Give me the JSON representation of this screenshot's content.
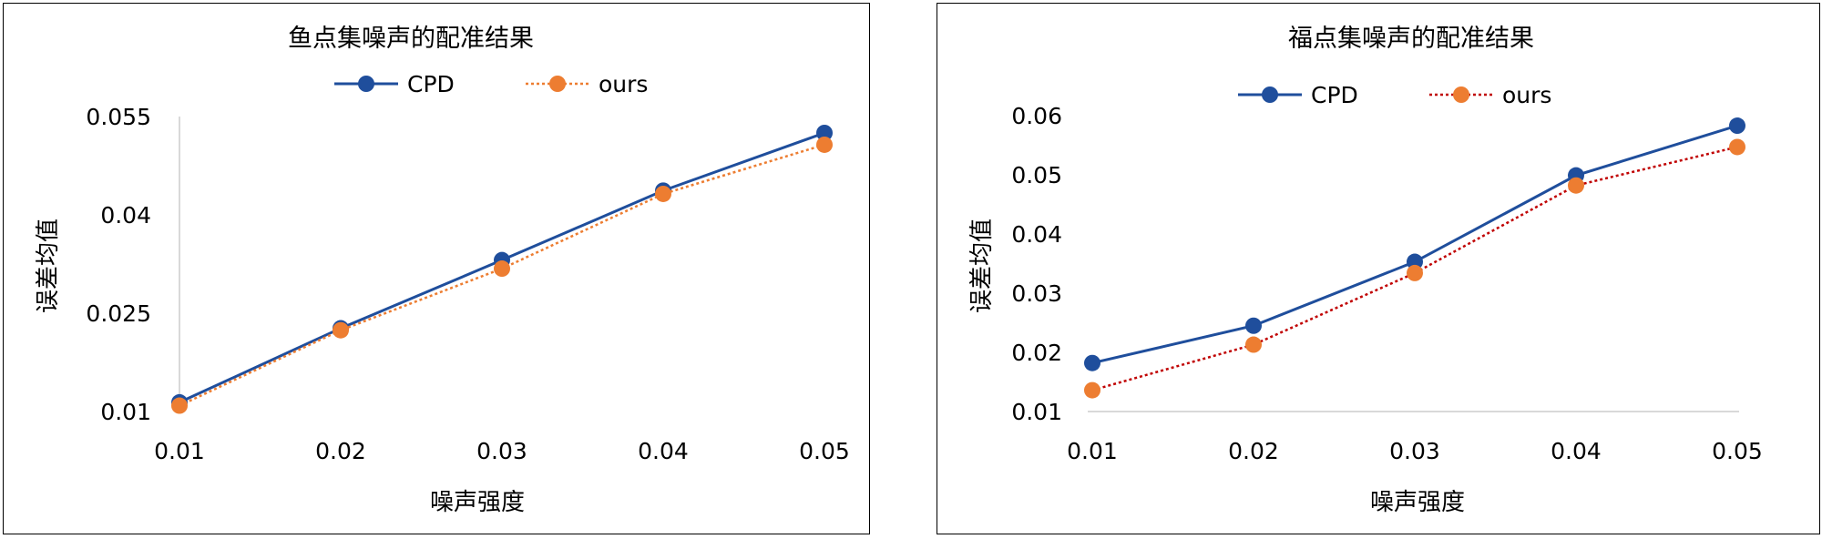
{
  "chart_data": [
    {
      "type": "line",
      "title": "鱼点集噪声的配准结果",
      "xlabel": "噪声强度",
      "ylabel": "误差均值",
      "categories": [
        "0.01",
        "0.02",
        "0.03",
        "0.04",
        "0.05"
      ],
      "ylim": [
        0.01,
        0.055
      ],
      "yticks": [
        "0.01",
        "0.025",
        "0.04",
        "0.055"
      ],
      "ytick_values": [
        0.01,
        0.025,
        0.04,
        0.055
      ],
      "legend_position": "top",
      "series": [
        {
          "name": "CPD",
          "values": [
            0.0114,
            0.0227,
            0.0331,
            0.0437,
            0.0525
          ],
          "color": "#1f4e9c",
          "dash": "solid"
        },
        {
          "name": "ours",
          "values": [
            0.0109,
            0.0224,
            0.0318,
            0.0432,
            0.0507
          ],
          "color": "#ed7d31",
          "dash": "dotted"
        }
      ]
    },
    {
      "type": "line",
      "title": "福点集噪声的配准结果",
      "xlabel": "噪声强度",
      "ylabel": "误差均值",
      "categories": [
        "0.01",
        "0.02",
        "0.03",
        "0.04",
        "0.05"
      ],
      "ylim": [
        0.01,
        0.06
      ],
      "yticks": [
        "0.01",
        "0.02",
        "0.03",
        "0.04",
        "0.05",
        "0.06"
      ],
      "ytick_values": [
        0.01,
        0.02,
        0.03,
        0.04,
        0.05,
        0.06
      ],
      "legend_position": "top",
      "series": [
        {
          "name": "CPD",
          "values": [
            0.0182,
            0.0245,
            0.0353,
            0.0499,
            0.0583
          ],
          "color": "#1f4e9c",
          "dash": "solid"
        },
        {
          "name": "ours",
          "values": [
            0.0136,
            0.0213,
            0.0334,
            0.0482,
            0.0547
          ],
          "color": "#c00000",
          "marker_color": "#ed7d31",
          "dash": "dotted"
        }
      ]
    }
  ]
}
